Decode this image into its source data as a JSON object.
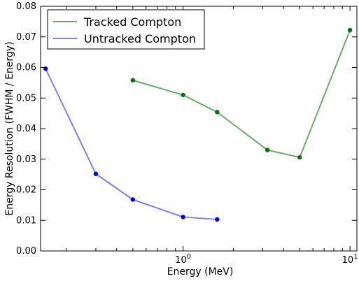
{
  "chart_data": {
    "type": "line",
    "xlabel": "Energy (MeV)",
    "ylabel": "Energy Resolution (FWHM / Energy)",
    "xscale": "log",
    "xlim": [
      0.14,
      11
    ],
    "ylim": [
      0.0,
      0.08
    ],
    "grid": false,
    "legend_position": "top-left",
    "y_ticks": [
      "0.00",
      "0.01",
      "0.02",
      "0.03",
      "0.04",
      "0.05",
      "0.06",
      "0.07",
      "0.08"
    ],
    "y_tick_values": [
      0,
      0.01,
      0.02,
      0.03,
      0.04,
      0.05,
      0.06,
      0.07,
      0.08
    ],
    "x_ticks": [
      {
        "value": 1,
        "base": "10",
        "exp": "0"
      },
      {
        "value": 10,
        "base": "10",
        "exp": "1"
      }
    ],
    "series": [
      {
        "name": "Tracked Compton",
        "color": "#6aaa6a",
        "marker_color": "#0a6e0a",
        "x": [
          0.5,
          1.0,
          1.6,
          3.2,
          5.0,
          10.0
        ],
        "y": [
          0.0558,
          0.051,
          0.0454,
          0.033,
          0.0306,
          0.0722
        ]
      },
      {
        "name": "Untracked Compton",
        "color": "#7f7fee",
        "marker_color": "#0000cc",
        "x": [
          0.15,
          0.3,
          0.5,
          1.0,
          1.6
        ],
        "y": [
          0.0596,
          0.0252,
          0.0168,
          0.0111,
          0.0103
        ]
      }
    ]
  }
}
